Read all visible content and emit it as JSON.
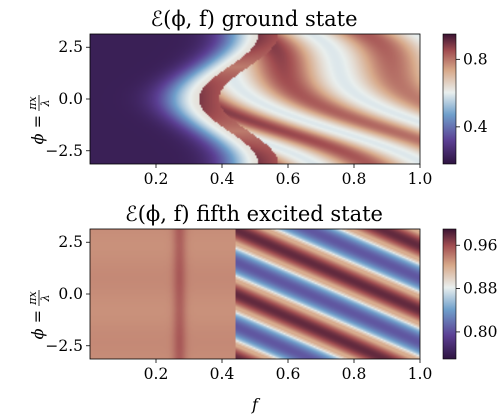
{
  "chart_data": [
    {
      "type": "heatmap",
      "title": "ℰ(ϕ, f) ground state",
      "ylabel": "ϕ = πx/λ",
      "ylabel_lhs": "ϕ =",
      "ylabel_num": "πx",
      "ylabel_den": "λ",
      "xlabel": "",
      "x_label": "f",
      "xlim": [
        0.0,
        1.0
      ],
      "ylim": [
        -3.14,
        3.14
      ],
      "xticks": [
        "0.2",
        "0.4",
        "0.6",
        "0.8",
        "1.0"
      ],
      "xtick_values": [
        0.2,
        0.4,
        0.6,
        0.8,
        1.0
      ],
      "yticks": [
        "2.5",
        "0.0",
        "−2.5"
      ],
      "ytick_values": [
        2.5,
        0.0,
        -2.5
      ],
      "colorbar": {
        "range": [
          0.18,
          0.95
        ],
        "ticks": [
          "0.8",
          "0.4"
        ],
        "tick_values": [
          0.8,
          0.4
        ],
        "colormap": "twilight_shifted"
      },
      "description_values": {
        "low_f_region_value": 0.18,
        "peak_value": 0.95,
        "bright_arc_near_f": 0.42,
        "oscillation_period_in_phi": 3.14
      }
    },
    {
      "type": "heatmap",
      "title": "ℰ(ϕ, f) fifth excited state",
      "ylabel": "ϕ = πx/λ",
      "ylabel_lhs": "ϕ =",
      "ylabel_num": "πx",
      "ylabel_den": "λ",
      "xlabel": "f",
      "x_label": "f",
      "xlim": [
        0.0,
        1.0
      ],
      "ylim": [
        -3.14,
        3.14
      ],
      "xticks": [
        "0.2",
        "0.4",
        "0.6",
        "0.8",
        "1.0"
      ],
      "xtick_values": [
        0.2,
        0.4,
        0.6,
        0.8,
        1.0
      ],
      "yticks": [
        "2.5",
        "0.0",
        "−2.5"
      ],
      "ytick_values": [
        2.5,
        0.0,
        -2.5
      ],
      "colorbar": {
        "range": [
          0.75,
          0.99
        ],
        "ticks": [
          "0.96",
          "0.88",
          "0.80"
        ],
        "tick_values": [
          0.96,
          0.88,
          0.8
        ],
        "colormap": "twilight_shifted"
      },
      "description_values": {
        "low_f_region_value": 0.92,
        "bright_band_near_f": 0.27,
        "peak_value": 0.99,
        "oscillation_period_in_phi": 3.14
      }
    }
  ]
}
